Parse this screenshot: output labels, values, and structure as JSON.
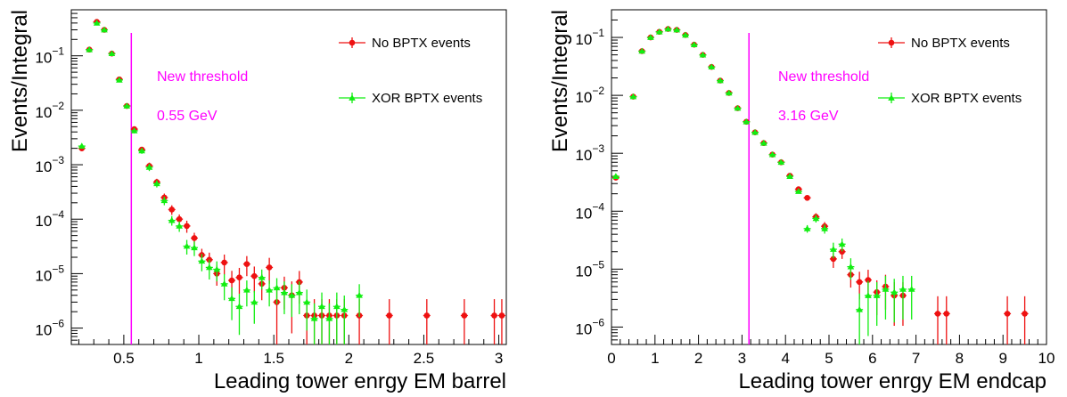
{
  "chart_data": [
    {
      "type": "scatter",
      "yscale": "log",
      "xlim": [
        0.15,
        3.05
      ],
      "ylim": [
        5e-07,
        0.7
      ],
      "xticks": [
        0.5,
        1,
        1.5,
        2,
        2.5,
        3
      ],
      "xtick_labels": [
        "0.5",
        "1",
        "1.5",
        "2",
        "2.5",
        "3"
      ],
      "yticks": [
        1e-06,
        1e-05,
        0.0001,
        0.001,
        0.01,
        0.1
      ],
      "ytick_labels": [
        [
          "10",
          "−6"
        ],
        [
          "10",
          "−5"
        ],
        [
          "10",
          "−4"
        ],
        [
          "10",
          "−3"
        ],
        [
          "10",
          "−2"
        ],
        [
          "10",
          "−1"
        ]
      ],
      "xlabel": "Leading tower enrgy EM barrel",
      "ylabel": "Events/Integral",
      "threshold": {
        "x": 0.55,
        "color": "#ff00ff",
        "label": "New threshold",
        "value_label": "0.55 GeV"
      },
      "legend": [
        {
          "name": "No BPTX events",
          "color": "#ee1111",
          "marker": "circle"
        },
        {
          "name": "XOR BPTX events",
          "color": "#11ee11",
          "marker": "triangle"
        }
      ],
      "series": [
        {
          "name": "No BPTX events",
          "color": "#ee1111",
          "marker": "circle",
          "x": [
            0.22,
            0.27,
            0.32,
            0.37,
            0.42,
            0.47,
            0.52,
            0.57,
            0.62,
            0.67,
            0.72,
            0.77,
            0.82,
            0.87,
            0.92,
            0.97,
            1.02,
            1.07,
            1.12,
            1.17,
            1.22,
            1.27,
            1.32,
            1.37,
            1.42,
            1.47,
            1.52,
            1.57,
            1.62,
            1.67,
            1.72,
            1.77,
            1.82,
            1.87,
            1.92,
            1.97,
            2.07,
            2.27,
            2.52,
            2.77,
            2.97,
            3.02
          ],
          "y": [
            0.002,
            0.13,
            0.42,
            0.3,
            0.11,
            0.037,
            0.012,
            0.0045,
            0.0019,
            0.00095,
            0.00048,
            0.00025,
            0.00015,
            0.0001,
            7.5e-05,
            4.5e-05,
            2.2e-05,
            1.8e-05,
            1e-05,
            1.6e-05,
            7.5e-06,
            8.5e-06,
            1.5e-05,
            9e-06,
            6.5e-06,
            1.3e-05,
            3e-06,
            5.5e-06,
            4e-06,
            7e-06,
            1.7e-06,
            1.7e-06,
            1.7e-06,
            1.7e-06,
            1.7e-06,
            1.7e-06,
            1.7e-06,
            1.7e-06,
            1.7e-06,
            1.7e-06,
            1.7e-06,
            1.7e-06
          ],
          "yerr_rel": [
            0.1,
            0.03,
            0.02,
            0.02,
            0.03,
            0.05,
            0.08,
            0.1,
            0.12,
            0.15,
            0.15,
            0.18,
            0.2,
            0.22,
            0.25,
            0.25,
            0.3,
            0.35,
            0.4,
            0.4,
            0.5,
            0.5,
            0.4,
            0.5,
            0.5,
            0.5,
            0.9,
            0.6,
            0.8,
            0.6,
            1.0,
            1.0,
            1.0,
            1.0,
            1.0,
            1.0,
            1.0,
            1.0,
            1.0,
            1.0,
            1.0,
            1.0
          ]
        },
        {
          "name": "XOR BPTX events",
          "color": "#11ee11",
          "marker": "triangle",
          "x": [
            0.22,
            0.27,
            0.32,
            0.37,
            0.42,
            0.47,
            0.52,
            0.57,
            0.62,
            0.67,
            0.72,
            0.77,
            0.82,
            0.87,
            0.92,
            0.97,
            1.02,
            1.07,
            1.12,
            1.17,
            1.22,
            1.27,
            1.32,
            1.37,
            1.42,
            1.47,
            1.52,
            1.57,
            1.62,
            1.67,
            1.72,
            1.77,
            1.82,
            1.87,
            1.92,
            1.97,
            2.07
          ],
          "y": [
            0.0022,
            0.13,
            0.4,
            0.3,
            0.11,
            0.036,
            0.012,
            0.0042,
            0.0018,
            0.0009,
            0.00045,
            0.00022,
            9.5e-05,
            7.5e-05,
            3.2e-05,
            3e-05,
            1.7e-05,
            1.3e-05,
            1.2e-05,
            6.5e-06,
            3.5e-06,
            2.5e-06,
            5e-06,
            3e-06,
            8.5e-06,
            5e-06,
            5.5e-06,
            4.5e-06,
            4e-06,
            4.5e-06,
            3e-06,
            1.5e-06,
            2.5e-06,
            1.5e-06,
            2.5e-06,
            2.2e-06,
            4e-06
          ],
          "yerr_rel": [
            0.1,
            0.03,
            0.02,
            0.02,
            0.03,
            0.05,
            0.08,
            0.1,
            0.12,
            0.15,
            0.15,
            0.18,
            0.2,
            0.22,
            0.3,
            0.3,
            0.35,
            0.4,
            0.4,
            0.5,
            0.6,
            0.7,
            0.5,
            0.6,
            0.4,
            0.5,
            0.5,
            0.6,
            0.6,
            0.6,
            0.7,
            0.9,
            0.8,
            0.9,
            0.8,
            0.8,
            0.6
          ]
        }
      ]
    },
    {
      "type": "scatter",
      "yscale": "log",
      "xlim": [
        0,
        10
      ],
      "ylim": [
        5e-07,
        0.3
      ],
      "xticks": [
        0,
        1,
        2,
        3,
        4,
        5,
        6,
        7,
        8,
        9,
        10
      ],
      "xtick_labels": [
        "0",
        "1",
        "2",
        "3",
        "4",
        "5",
        "6",
        "7",
        "8",
        "9",
        "10"
      ],
      "yticks": [
        1e-06,
        1e-05,
        0.0001,
        0.001,
        0.01,
        0.1
      ],
      "ytick_labels": [
        [
          "10",
          "−6"
        ],
        [
          "10",
          "−5"
        ],
        [
          "10",
          "−4"
        ],
        [
          "10",
          "−3"
        ],
        [
          "10",
          "−2"
        ],
        [
          "10",
          "−1"
        ]
      ],
      "xlabel": "Leading tower enrgy EM endcap",
      "ylabel": "Events/Integral",
      "threshold": {
        "x": 3.16,
        "color": "#ff00ff",
        "label": "New threshold",
        "value_label": "3.16 GeV"
      },
      "legend": [
        {
          "name": "No BPTX events",
          "color": "#ee1111",
          "marker": "circle"
        },
        {
          "name": "XOR BPTX events",
          "color": "#11ee11",
          "marker": "triangle"
        }
      ],
      "series": [
        {
          "name": "No BPTX events",
          "color": "#ee1111",
          "marker": "circle",
          "x": [
            0.1,
            0.5,
            0.7,
            0.9,
            1.1,
            1.3,
            1.5,
            1.7,
            1.9,
            2.1,
            2.3,
            2.5,
            2.7,
            2.9,
            3.1,
            3.3,
            3.5,
            3.7,
            3.9,
            4.1,
            4.3,
            4.5,
            4.7,
            4.9,
            5.1,
            5.3,
            5.5,
            5.7,
            5.9,
            6.1,
            6.3,
            6.5,
            6.7,
            7.5,
            7.7,
            9.1,
            9.5
          ],
          "y": [
            0.00038,
            0.0095,
            0.058,
            0.1,
            0.125,
            0.14,
            0.135,
            0.11,
            0.075,
            0.05,
            0.031,
            0.018,
            0.011,
            0.006,
            0.0035,
            0.0023,
            0.0015,
            0.00095,
            0.0007,
            0.00041,
            0.00024,
            0.00017,
            8e-05,
            5.5e-05,
            1.5e-05,
            2e-05,
            8e-06,
            6e-06,
            6.5e-06,
            4e-06,
            5e-06,
            3.5e-06,
            3.5e-06,
            1.7e-06,
            1.7e-06,
            1.7e-06,
            1.7e-06
          ],
          "yerr_rel": [
            0.05,
            0.02,
            0.01,
            0.01,
            0.01,
            0.01,
            0.01,
            0.01,
            0.01,
            0.01,
            0.01,
            0.02,
            0.02,
            0.02,
            0.03,
            0.03,
            0.04,
            0.05,
            0.05,
            0.06,
            0.08,
            0.1,
            0.15,
            0.18,
            0.3,
            0.25,
            0.4,
            0.5,
            0.5,
            0.6,
            0.6,
            0.7,
            0.7,
            1.0,
            1.0,
            1.0,
            1.0
          ]
        },
        {
          "name": "XOR BPTX events",
          "color": "#11ee11",
          "marker": "triangle",
          "x": [
            0.1,
            0.5,
            0.7,
            0.9,
            1.1,
            1.3,
            1.5,
            1.7,
            1.9,
            2.1,
            2.3,
            2.5,
            2.7,
            2.9,
            3.1,
            3.3,
            3.5,
            3.7,
            3.9,
            4.1,
            4.3,
            4.5,
            4.7,
            4.9,
            5.1,
            5.3,
            5.5,
            5.7,
            5.9,
            6.1,
            6.3,
            6.5,
            6.7,
            6.9
          ],
          "y": [
            0.0004,
            0.0095,
            0.058,
            0.1,
            0.125,
            0.14,
            0.135,
            0.11,
            0.075,
            0.05,
            0.031,
            0.018,
            0.011,
            0.006,
            0.0035,
            0.0023,
            0.0015,
            0.00095,
            0.0007,
            0.0004,
            0.00022,
            5e-05,
            7.5e-05,
            5e-05,
            2.2e-05,
            2.7e-05,
            1.1e-05,
            2e-06,
            3.5e-06,
            3.5e-06,
            4.5e-06,
            4e-06,
            4.5e-06,
            4.5e-06
          ],
          "yerr_rel": [
            0.05,
            0.02,
            0.01,
            0.01,
            0.01,
            0.01,
            0.01,
            0.01,
            0.01,
            0.01,
            0.01,
            0.02,
            0.02,
            0.02,
            0.03,
            0.03,
            0.04,
            0.05,
            0.05,
            0.06,
            0.08,
            0.15,
            0.15,
            0.18,
            0.3,
            0.25,
            0.4,
            0.9,
            0.8,
            0.7,
            0.7,
            0.7,
            0.7,
            0.7
          ]
        }
      ]
    }
  ]
}
